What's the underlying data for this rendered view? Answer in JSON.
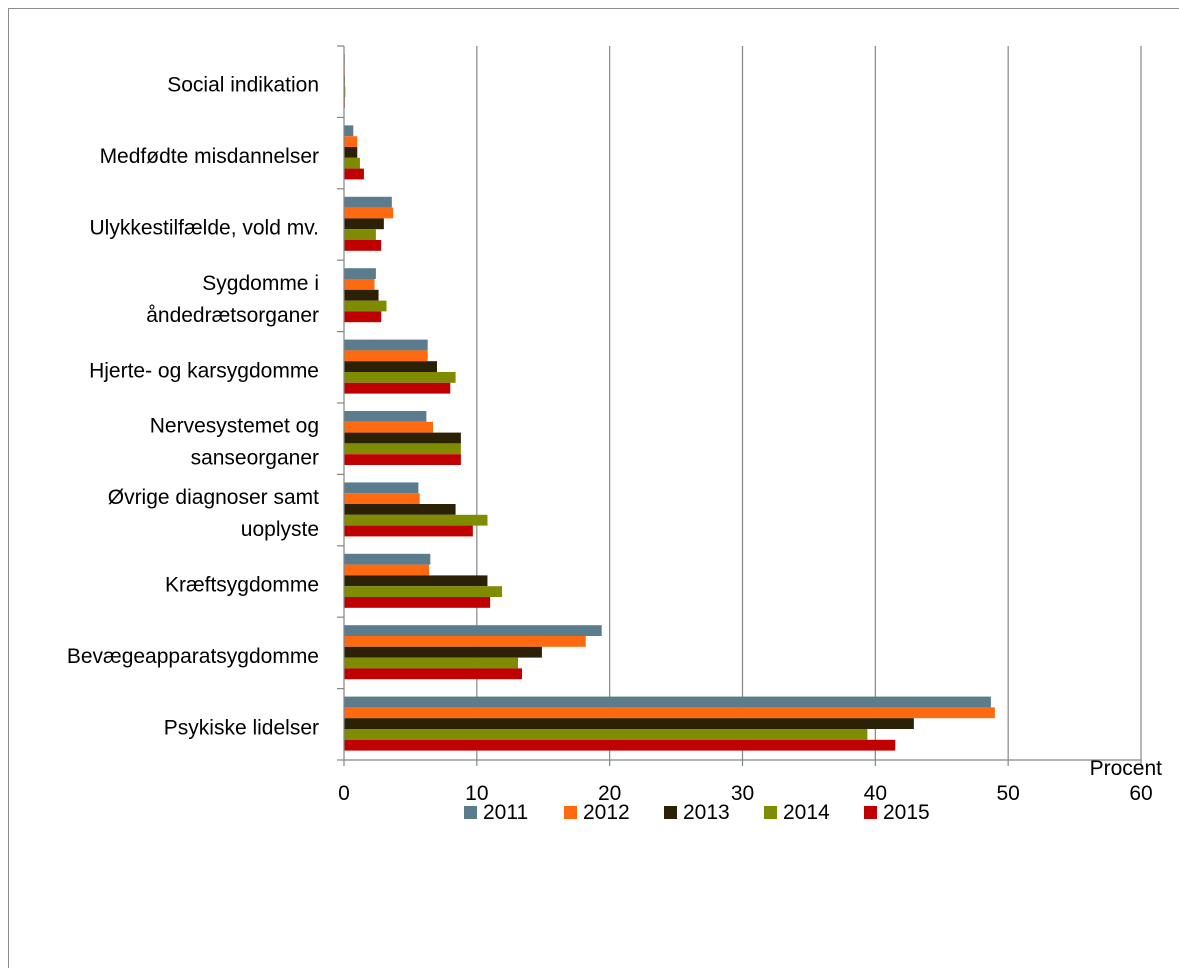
{
  "chart_data": {
    "type": "bar",
    "orientation": "horizontal",
    "xlabel": "Procent",
    "xlim": [
      0,
      60
    ],
    "xticks": [
      0,
      10,
      20,
      30,
      40,
      50,
      60
    ],
    "grid": true,
    "legend_position": "bottom",
    "categories": [
      [
        "Social indikation"
      ],
      [
        "Medfødte misdannelser"
      ],
      [
        "Ulykkestilfælde, vold mv."
      ],
      [
        "Sygdomme i",
        "åndedrætsorganer"
      ],
      [
        "Hjerte- og karsygdomme"
      ],
      [
        "Nervesystemet og",
        "sanseorganer"
      ],
      [
        "Øvrige diagnoser samt",
        "uoplyste"
      ],
      [
        "Kræftsygdomme"
      ],
      [
        "Bevægeapparatsygdomme"
      ],
      [
        "Psykiske lidelser"
      ]
    ],
    "series": [
      {
        "name": "2011",
        "color": "#5a7c8c",
        "values": [
          0.05,
          0.7,
          3.6,
          2.4,
          6.3,
          6.2,
          5.6,
          6.5,
          19.4,
          48.7
        ]
      },
      {
        "name": "2012",
        "color": "#ff6a10",
        "values": [
          0.05,
          1.0,
          3.7,
          2.3,
          6.3,
          6.7,
          5.7,
          6.4,
          18.2,
          49.0
        ]
      },
      {
        "name": "2013",
        "color": "#2b2106",
        "values": [
          0.05,
          1.0,
          3.0,
          2.6,
          7.0,
          8.8,
          8.4,
          10.8,
          14.9,
          42.9
        ]
      },
      {
        "name": "2014",
        "color": "#7f8b00",
        "values": [
          0.1,
          1.2,
          2.4,
          3.2,
          8.4,
          8.8,
          10.8,
          11.9,
          13.1,
          39.4
        ]
      },
      {
        "name": "2015",
        "color": "#c00000",
        "values": [
          0.05,
          1.5,
          2.8,
          2.8,
          8.0,
          8.8,
          9.7,
          11.0,
          13.4,
          41.5
        ]
      }
    ]
  }
}
